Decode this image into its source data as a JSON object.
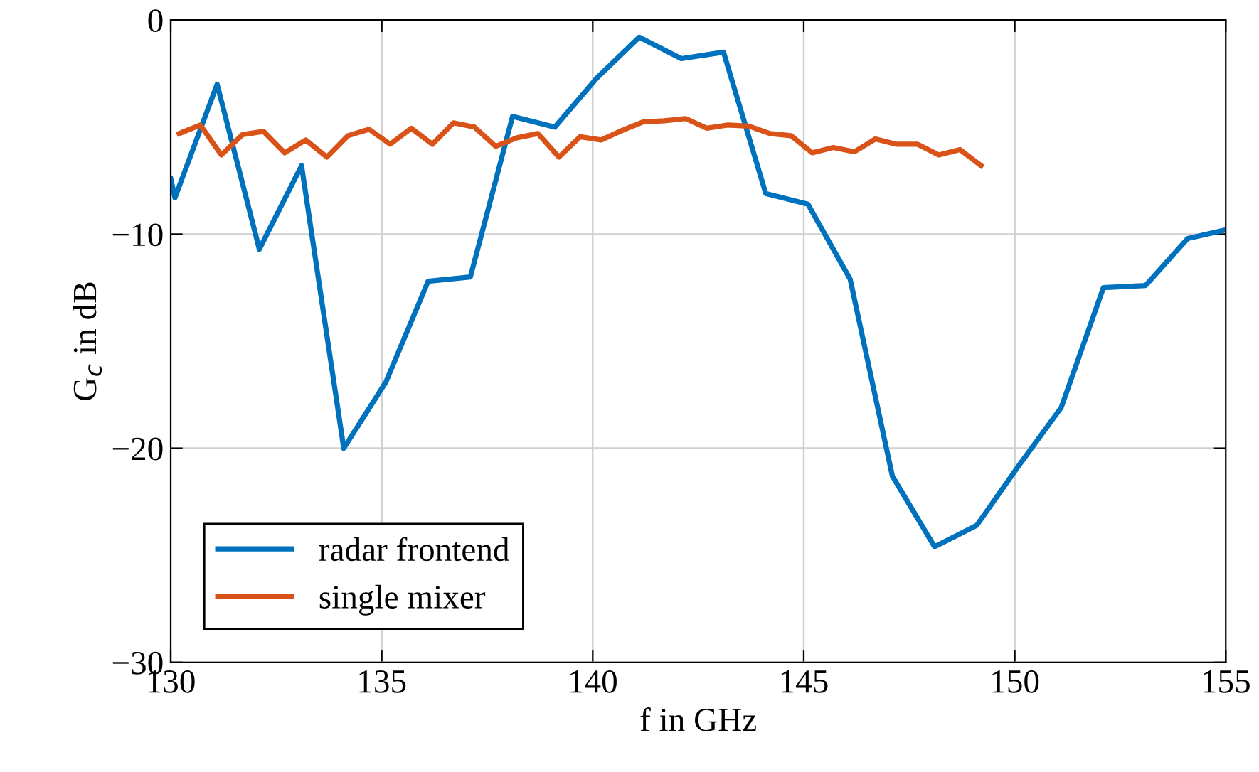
{
  "chart_data": {
    "type": "line",
    "xlabel": "f in GHz",
    "ylabel": "G$_{c}$ in dB",
    "xlim": [
      130,
      155
    ],
    "xticks": [
      130,
      135,
      140,
      145,
      150,
      155
    ],
    "ylim": [
      -30,
      0
    ],
    "yticks": [
      -30,
      -20,
      -10,
      0
    ],
    "grid": true,
    "legend": "bottom left",
    "marker": "none",
    "line_style": "solid",
    "series": [
      {
        "name": "radar frontend",
        "color": "#0072bd",
        "x": [
          130,
          130.1,
          131.1,
          132.1,
          133.1,
          134.1,
          135.1,
          136.1,
          137.1,
          138.1,
          139.1,
          140.1,
          141.1,
          142.1,
          143.1,
          144.1,
          145.1,
          146.1,
          147.1,
          148.1,
          149.1,
          150.1,
          151.1,
          152.1,
          153.1,
          154.1,
          155
        ],
        "values": [
          -7.4,
          -8.3,
          -3.0,
          -10.7,
          -6.8,
          -20.0,
          -16.9,
          -12.2,
          -12.0,
          -4.5,
          -5.0,
          -2.7,
          -0.8,
          -1.8,
          -1.5,
          -8.1,
          -8.6,
          -12.1,
          -21.3,
          -24.6,
          -23.6,
          -20.8,
          -18.1,
          -12.5,
          -12.4,
          -10.2,
          -9.8
        ]
      },
      {
        "name": "single mixer",
        "color": "#d95319",
        "x": [
          130.2,
          130.7,
          131.2,
          131.7,
          132.2,
          132.7,
          133.2,
          133.7,
          134.2,
          134.7,
          135.2,
          135.7,
          136.2,
          136.7,
          137.2,
          137.7,
          138.2,
          138.7,
          139.2,
          139.7,
          140.2,
          140.7,
          141.2,
          141.7,
          142.2,
          142.7,
          143.2,
          143.7,
          144.2,
          144.7,
          145.2,
          145.7,
          146.2,
          146.7,
          147.2,
          147.7,
          148.2,
          148.7,
          149.2
        ],
        "values": [
          -5.3,
          -4.9,
          -6.3,
          -5.35,
          -5.2,
          -6.2,
          -5.6,
          -6.4,
          -5.4,
          -5.1,
          -5.8,
          -5.05,
          -5.8,
          -4.8,
          -5.0,
          -5.9,
          -5.5,
          -5.3,
          -6.4,
          -5.45,
          -5.6,
          -5.15,
          -4.75,
          -4.7,
          -4.6,
          -5.05,
          -4.9,
          -4.95,
          -5.3,
          -5.4,
          -6.2,
          -5.95,
          -6.15,
          -5.55,
          -5.8,
          -5.8,
          -6.3,
          -6.05,
          -6.8
        ]
      }
    ]
  }
}
